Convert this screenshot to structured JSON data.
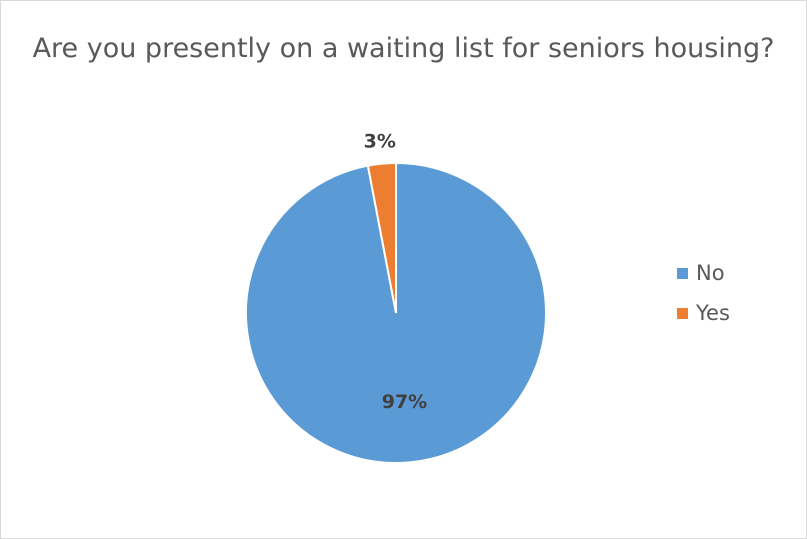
{
  "chart_data": {
    "type": "pie",
    "title": "Are you presently on a waiting list for seniors housing?",
    "categories": [
      "No",
      "Yes"
    ],
    "values": [
      97,
      3
    ],
    "data_labels": [
      "97%",
      "3%"
    ],
    "colors": [
      "#5b9bd5",
      "#ed7d31"
    ],
    "legend_position": "right",
    "start_angle_deg": 0,
    "direction": "clockwise"
  }
}
